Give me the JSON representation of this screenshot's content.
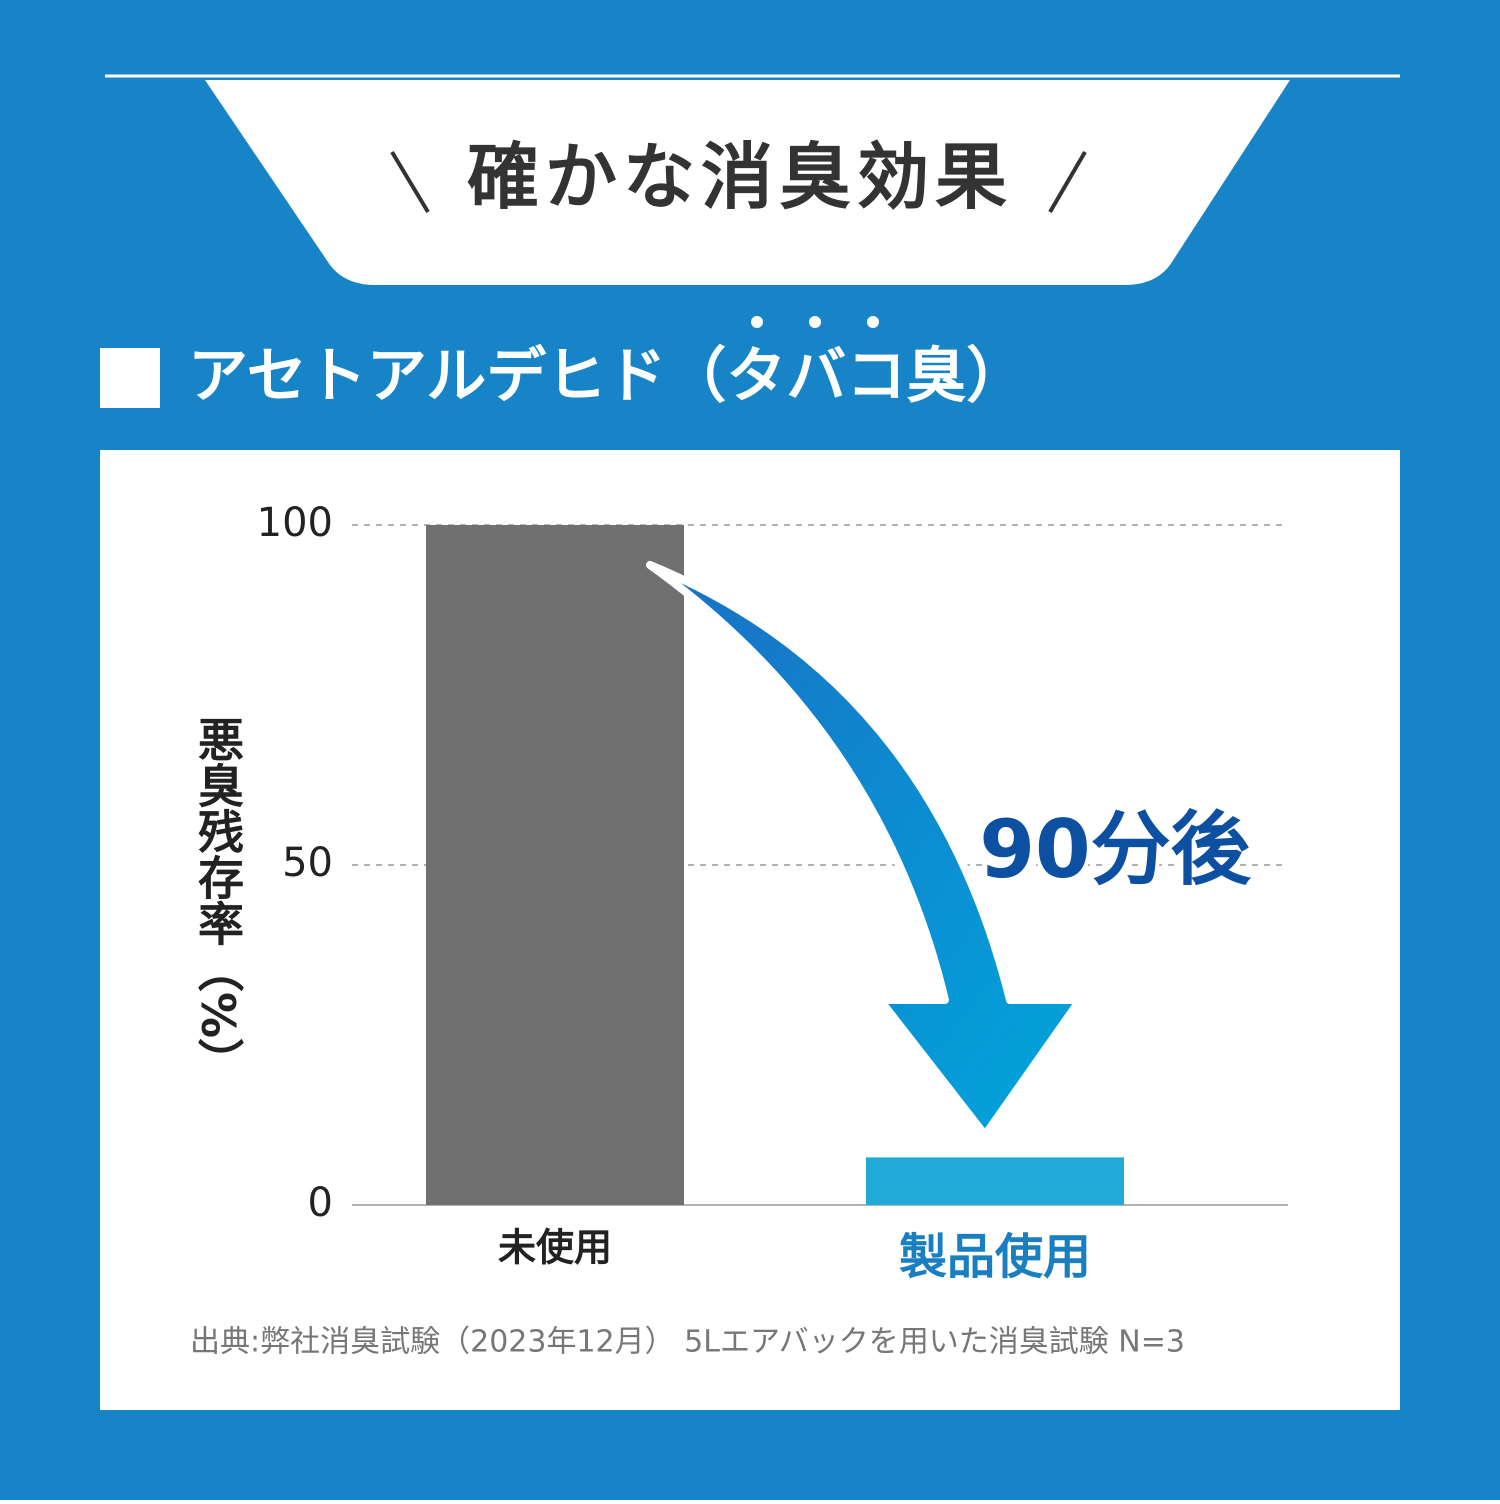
{
  "chart_data": {
    "type": "bar",
    "title": "確かな消臭効果",
    "subtitle": "アセトアルデヒド（タバコ臭）",
    "y_label": "悪臭残存率（%）",
    "annotation": "90分後",
    "source": "出典:弊社消臭試験（2023年12月） 5Lエアバックを用いた消臭試験 N=3",
    "categories": [
      "未使用",
      "製品使用"
    ],
    "values": [
      100,
      7
    ],
    "colors": [
      "#707070",
      "#22aad6"
    ],
    "ylim": [
      0,
      100
    ],
    "yticks": [
      0,
      50,
      100
    ],
    "grid": true
  }
}
